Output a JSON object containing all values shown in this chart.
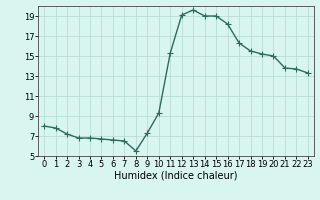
{
  "x": [
    0,
    1,
    2,
    3,
    4,
    5,
    6,
    7,
    8,
    9,
    10,
    11,
    12,
    13,
    14,
    15,
    16,
    17,
    18,
    19,
    20,
    21,
    22,
    23
  ],
  "y": [
    8.0,
    7.8,
    7.2,
    6.8,
    6.8,
    6.7,
    6.6,
    6.5,
    5.5,
    7.3,
    9.3,
    15.3,
    19.1,
    19.6,
    19.0,
    19.0,
    18.2,
    16.3,
    15.5,
    15.2,
    15.0,
    13.8,
    13.7,
    13.3
  ],
  "line_color": "#2d6b5e",
  "marker": "D",
  "marker_size": 2.0,
  "bg_color": "#d8f5f0",
  "grid_color": "#b8ddd8",
  "ylim": [
    5,
    20
  ],
  "xlim": [
    -0.5,
    23.5
  ],
  "yticks": [
    5,
    7,
    9,
    11,
    13,
    15,
    17,
    19
  ],
  "xticks": [
    0,
    1,
    2,
    3,
    4,
    5,
    6,
    7,
    8,
    9,
    10,
    11,
    12,
    13,
    14,
    15,
    16,
    17,
    18,
    19,
    20,
    21,
    22,
    23
  ],
  "xlabel": "Humidex (Indice chaleur)",
  "xlabel_fontsize": 7,
  "tick_fontsize": 6,
  "line_width": 1.0
}
